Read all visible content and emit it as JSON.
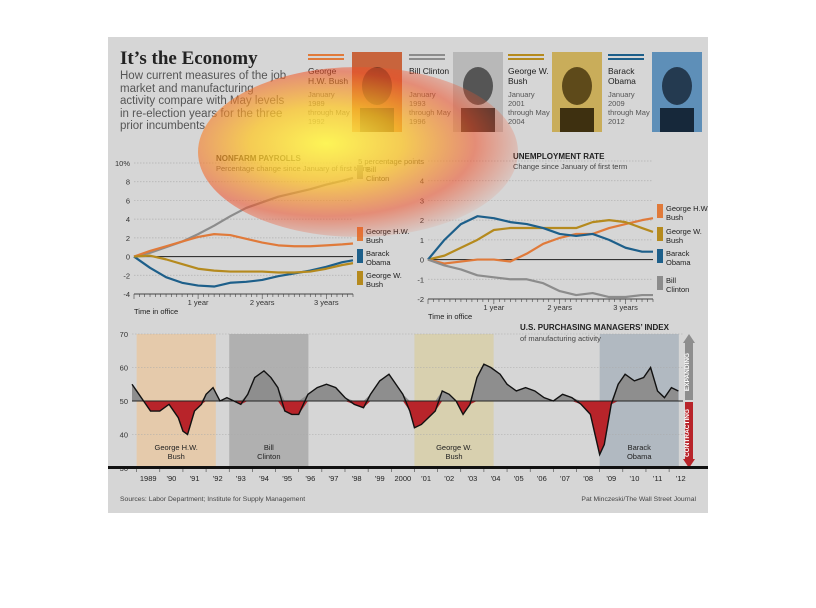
{
  "title": "It’s the Economy",
  "subtitle": "How current measures of the job market and manufacturing activity compare with May levels in re-election years for the three prior incumbents",
  "presidents": [
    {
      "name": "George H.W. Bush",
      "dates": "January 1989 through May 1992",
      "color": "#e07a3a"
    },
    {
      "name": "Bill Clinton",
      "dates": "January 1993 through May 1996",
      "color": "#8c8c8c"
    },
    {
      "name": "George W. Bush",
      "dates": "January 2001 through May 2004",
      "color": "#b58a1e"
    },
    {
      "name": "Barack Obama",
      "dates": "January 2009 through May 2012",
      "color": "#1d5f8a"
    }
  ],
  "sources": "Sources: Labor Department; Institute for Supply Management",
  "credit": "Pat Minczeski/The Wall Street Journal",
  "chart_data": [
    {
      "type": "line",
      "title": "NONFARM PAYROLLS",
      "subtitle": "Percentage change since January of first term",
      "unit_label": "10%",
      "xlabel": "Time in office",
      "xticks": [
        "1 year",
        "2 years",
        "3 years"
      ],
      "ylim": [
        -4,
        10
      ],
      "yticks": [
        -4,
        -2,
        0,
        2,
        4,
        6,
        8,
        10
      ],
      "ytick_labels": [
        "-4",
        "-2",
        "0",
        "2",
        "4",
        "6",
        "8",
        "10%"
      ],
      "x": [
        0,
        3,
        6,
        9,
        12,
        15,
        18,
        21,
        24,
        27,
        30,
        33,
        36,
        39,
        41
      ],
      "series": [
        {
          "name": "Bill Clinton",
          "color": "#8c8c8c",
          "values": [
            0,
            0.4,
            1.0,
            1.6,
            2.4,
            3.3,
            4.3,
            5.2,
            5.8,
            6.4,
            6.8,
            7.2,
            7.7,
            8.1,
            8.4
          ]
        },
        {
          "name": "George H.W. Bush",
          "color": "#e07a3a",
          "values": [
            0,
            0.6,
            1.1,
            1.6,
            2.1,
            2.4,
            2.3,
            1.9,
            1.5,
            1.2,
            1.1,
            1.1,
            1.2,
            1.3,
            1.4
          ]
        },
        {
          "name": "Barack Obama",
          "color": "#1d5f8a",
          "values": [
            0,
            -1.2,
            -2.2,
            -2.8,
            -3.1,
            -3.2,
            -2.8,
            -2.7,
            -2.5,
            -2.1,
            -1.8,
            -1.5,
            -1.1,
            -0.6,
            -0.4
          ]
        },
        {
          "name": "George W. Bush",
          "color": "#b58a1e",
          "values": [
            0,
            0.1,
            -0.3,
            -0.8,
            -1.3,
            -1.5,
            -1.6,
            -1.6,
            -1.6,
            -1.7,
            -1.7,
            -1.6,
            -1.3,
            -0.9,
            -0.7
          ]
        }
      ]
    },
    {
      "type": "line",
      "title": "UNEMPLOYMENT RATE",
      "subtitle": "Change since January of first term",
      "unit_label": "5 percentage points",
      "xlabel": "Time in office",
      "xticks": [
        "1 year",
        "2 years",
        "3 years"
      ],
      "ylim": [
        -2,
        5
      ],
      "yticks": [
        -2,
        -1,
        0,
        1,
        2,
        3,
        4,
        5
      ],
      "ytick_labels": [
        "-2",
        "-1",
        "0",
        "1",
        "2",
        "3",
        "4",
        "5 percentage points"
      ],
      "x": [
        0,
        3,
        6,
        9,
        12,
        15,
        18,
        21,
        24,
        27,
        30,
        33,
        36,
        39,
        41
      ],
      "series": [
        {
          "name": "George H.W. Bush",
          "color": "#e07a3a",
          "values": [
            0,
            -0.2,
            -0.1,
            0,
            0,
            -0.1,
            0.3,
            0.8,
            1.1,
            1.3,
            1.3,
            1.6,
            1.8,
            2.0,
            2.1
          ]
        },
        {
          "name": "George W. Bush",
          "color": "#b58a1e",
          "values": [
            0,
            0.2,
            0.6,
            1.0,
            1.5,
            1.6,
            1.6,
            1.6,
            1.6,
            1.6,
            1.9,
            2.0,
            1.9,
            1.6,
            1.4
          ]
        },
        {
          "name": "Barack Obama",
          "color": "#1d5f8a",
          "values": [
            0,
            1.0,
            1.8,
            2.2,
            2.1,
            1.9,
            1.8,
            1.6,
            1.3,
            1.2,
            1.3,
            1.0,
            0.6,
            0.4,
            0.4
          ]
        },
        {
          "name": "Bill Clinton",
          "color": "#8c8c8c",
          "values": [
            0,
            -0.3,
            -0.5,
            -0.8,
            -0.9,
            -1.0,
            -1.0,
            -1.2,
            -1.6,
            -1.8,
            -1.7,
            -1.9,
            -1.9,
            -1.8,
            -1.8
          ]
        }
      ]
    },
    {
      "type": "area",
      "title": "U.S. PURCHASING MANAGERS’ INDEX",
      "subtitle": "of manufacturing activity",
      "ylim": [
        30,
        70
      ],
      "yticks": [
        30,
        40,
        50,
        60,
        70
      ],
      "baseline": 50,
      "expanding_label": "EXPANDING",
      "contracting_label": "CONTRACTING",
      "xticks": [
        "1989",
        "’90",
        "’91",
        "’92",
        "’93",
        "’94",
        "’95",
        "’96",
        "’97",
        "’98",
        "’99",
        "2000",
        "’01",
        "’02",
        "’03",
        "’04",
        "’05",
        "’06",
        "’07",
        "’08",
        "’09",
        "’10",
        "’11",
        "’12"
      ],
      "terms": [
        {
          "name": "George H.W. Bush",
          "start": 1989.0,
          "end": 1992.42,
          "color": "#e8c8a3"
        },
        {
          "name": "Bill Clinton",
          "start": 1993.0,
          "end": 1996.42,
          "color": "#a9a9a9"
        },
        {
          "name": "George W. Bush",
          "start": 2001.0,
          "end": 2004.42,
          "color": "#d8cfa8"
        },
        {
          "name": "Barack Obama",
          "start": 2009.0,
          "end": 2012.42,
          "color": "#aab4bd"
        }
      ],
      "x": [
        1988.8,
        1989.0,
        1989.3,
        1989.6,
        1990.0,
        1990.4,
        1990.8,
        1991.0,
        1991.2,
        1991.5,
        1991.8,
        1992.0,
        1992.3,
        1992.6,
        1992.9,
        1993.2,
        1993.5,
        1993.8,
        1994.1,
        1994.5,
        1994.8,
        1995.1,
        1995.4,
        1995.7,
        1996.0,
        1996.4,
        1996.8,
        1997.2,
        1997.6,
        1998.0,
        1998.4,
        1998.8,
        1999.1,
        1999.5,
        1999.9,
        2000.2,
        2000.5,
        2000.8,
        2001.0,
        2001.3,
        2001.6,
        2001.9,
        2002.2,
        2002.5,
        2002.8,
        2003.1,
        2003.4,
        2003.7,
        2004.0,
        2004.3,
        2004.7,
        2005.0,
        2005.4,
        2005.8,
        2006.2,
        2006.6,
        2007.0,
        2007.4,
        2007.8,
        2008.2,
        2008.6,
        2008.9,
        2009.0,
        2009.2,
        2009.5,
        2009.8,
        2010.1,
        2010.5,
        2010.9,
        2011.2,
        2011.5,
        2011.8,
        2012.1,
        2012.4
      ],
      "values": [
        55,
        53,
        50,
        47,
        47,
        49,
        45,
        41,
        40,
        47,
        49,
        52,
        54,
        50,
        51,
        50,
        49,
        52,
        57,
        59,
        57,
        54,
        47,
        46,
        46,
        52,
        54,
        55,
        54,
        51,
        49,
        48,
        52,
        56,
        58,
        55,
        52,
        47,
        42,
        43,
        45,
        47,
        53,
        52,
        50,
        46,
        49,
        57,
        61,
        60,
        58,
        55,
        53,
        54,
        53,
        51,
        50,
        52,
        51,
        49,
        46,
        37,
        34,
        37,
        49,
        55,
        58,
        56,
        57,
        60,
        53,
        51,
        54,
        53
      ]
    }
  ]
}
